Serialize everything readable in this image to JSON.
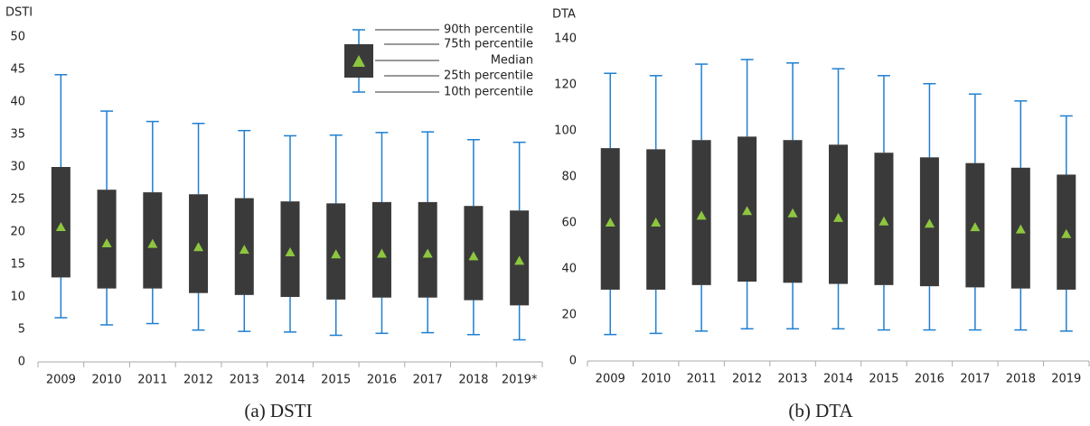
{
  "chart_data": [
    {
      "type": "box",
      "y_label": "DSTI",
      "caption": "(a) DSTI",
      "categories": [
        "2009",
        "2010",
        "2011",
        "2012",
        "2013",
        "2014",
        "2015",
        "2016",
        "2017",
        "2018",
        "2019*"
      ],
      "p90": [
        44.2,
        38.6,
        37.0,
        36.7,
        35.6,
        34.8,
        34.9,
        35.3,
        35.4,
        34.2,
        33.8
      ],
      "p75": [
        30.0,
        26.5,
        26.1,
        25.8,
        25.2,
        24.7,
        24.4,
        24.6,
        24.6,
        24.0,
        23.3
      ],
      "median": [
        20.7,
        18.2,
        18.1,
        17.6,
        17.2,
        16.8,
        16.5,
        16.6,
        16.6,
        16.2,
        15.5
      ],
      "p25": [
        13.0,
        11.3,
        11.3,
        10.6,
        10.3,
        10.0,
        9.6,
        9.9,
        9.9,
        9.5,
        8.7
      ],
      "p10": [
        6.8,
        5.7,
        5.9,
        4.9,
        4.7,
        4.6,
        4.1,
        4.4,
        4.5,
        4.2,
        3.4
      ],
      "ylim": [
        0,
        50
      ],
      "yticks": [
        0,
        5,
        10,
        15,
        20,
        25,
        30,
        35,
        40,
        45,
        50
      ],
      "legend": [
        "90th percentile",
        "75th percentile",
        "Median",
        "25th percentile",
        "10th percentile"
      ],
      "box_color": "#3a3a3a",
      "whisker_color": "#1f7fd0",
      "median_color": "#8dc63f"
    },
    {
      "type": "box",
      "y_label": "DTA",
      "caption": "(b) DTA",
      "categories": [
        "2009",
        "2010",
        "2011",
        "2012",
        "2013",
        "2014",
        "2015",
        "2016",
        "2017",
        "2018",
        "2019"
      ],
      "p90": [
        125,
        124,
        129,
        131,
        129.5,
        127,
        124,
        120.5,
        116,
        113,
        106.5
      ],
      "p75": [
        92.5,
        92,
        96,
        97.5,
        96,
        94,
        90.5,
        88.5,
        86,
        84,
        81
      ],
      "median": [
        60,
        60,
        63,
        65,
        64,
        62,
        60.5,
        59.5,
        58,
        57,
        55
      ],
      "p25": [
        31,
        31,
        33,
        34.5,
        34,
        33.5,
        33,
        32.5,
        32,
        31.5,
        31
      ],
      "p10": [
        11.5,
        12,
        13,
        14,
        14,
        14,
        13.5,
        13.5,
        13.5,
        13.5,
        13
      ],
      "ylim": [
        0,
        140
      ],
      "yticks": [
        0,
        20,
        40,
        60,
        80,
        100,
        120,
        140
      ],
      "box_color": "#3a3a3a",
      "whisker_color": "#1f7fd0",
      "median_color": "#8dc63f"
    }
  ]
}
